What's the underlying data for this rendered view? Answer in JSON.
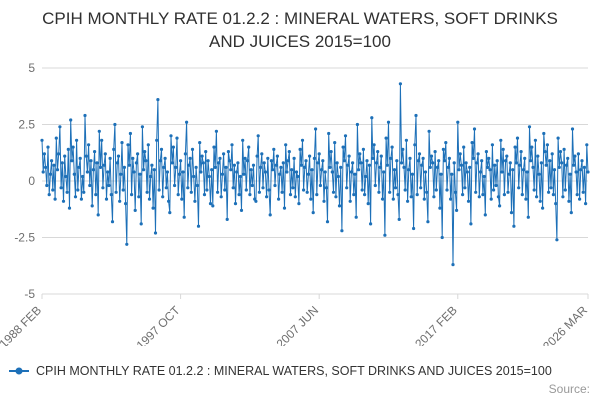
{
  "title": "CPIH MONTHLY RATE 01.2.2 : MINERAL WATERS, SOFT DRINKS AND JUICES 2015=100",
  "legend": {
    "label": "CPIH MONTHLY RATE 01.2.2 : MINERAL WATERS, SOFT DRINKS AND JUICES 2015=100"
  },
  "source_label": "Source:",
  "colors": {
    "line": "#1d70b8",
    "grid": "#d8d8d8",
    "axis_text": "#6e6e6e",
    "title_text": "#303030"
  },
  "chart_data": {
    "type": "line",
    "title": "CPIH MONTHLY RATE 01.2.2 : MINERAL WATERS, SOFT DRINKS AND JUICES 2015=100",
    "xlabel": "",
    "ylabel": "",
    "ylim": [
      -5,
      5
    ],
    "yticks": [
      5,
      2.5,
      0,
      -2.5,
      -5
    ],
    "x_range": [
      "1988 FEB",
      "2026 MAR"
    ],
    "xticks": [
      {
        "label": "1988 FEB",
        "index": 0
      },
      {
        "label": "1997 OCT",
        "index": 116
      },
      {
        "label": "2007 JUN",
        "index": 232
      },
      {
        "label": "2017 FEB",
        "index": 348
      },
      {
        "label": "2026 MAR",
        "index": 457
      }
    ],
    "values": [
      1.8,
      0.4,
      1.2,
      0.6,
      -0.2,
      1.5,
      -0.6,
      0.3,
      0.9,
      -0.4,
      0.7,
      -0.8,
      1.9,
      0.5,
      1.2,
      2.4,
      -0.3,
      0.8,
      -0.9,
      1.1,
      0.2,
      -0.5,
      1.4,
      -1.2,
      2.7,
      0.9,
      1.5,
      0.3,
      -0.7,
      1.8,
      -0.4,
      0.6,
      1.0,
      -0.8,
      0.2,
      -0.5,
      2.9,
      1.1,
      0.4,
      1.6,
      -0.2,
      0.9,
      -1.1,
      0.5,
      1.3,
      -0.6,
      0.8,
      -1.5,
      2.2,
      0.6,
      1.8,
      -0.3,
      0.7,
      1.2,
      -0.8,
      0.4,
      -0.2,
      1.0,
      -0.6,
      -1.8,
      1.4,
      2.5,
      -0.5,
      0.8,
      1.1,
      -0.9,
      0.3,
      1.7,
      -0.4,
      0.6,
      -1.0,
      -2.8,
      1.6,
      0.7,
      2.1,
      -0.6,
      1.0,
      0.4,
      -1.3,
      0.8,
      1.2,
      -0.7,
      0.3,
      -1.9,
      2.4,
      0.5,
      1.3,
      0.9,
      -0.5,
      1.6,
      -0.8,
      0.2,
      0.7,
      -1.2,
      0.5,
      -2.3,
      1.8,
      3.6,
      -0.4,
      0.9,
      1.4,
      -0.7,
      0.6,
      1.0,
      -0.3,
      0.4,
      -0.9,
      -1.4,
      2.0,
      0.8,
      1.5,
      -0.2,
      0.6,
      1.9,
      -0.6,
      0.3,
      0.9,
      -0.8,
      0.4,
      -1.6,
      1.2,
      2.6,
      -0.3,
      0.7,
      1.0,
      -0.5,
      1.4,
      0.2,
      -0.9,
      0.6,
      -0.2,
      -2.0,
      1.7,
      0.4,
      1.1,
      0.8,
      -0.6,
      1.3,
      -0.4,
      0.9,
      0.2,
      -1.0,
      0.5,
      -1.1,
      1.5,
      0.6,
      2.2,
      -0.5,
      0.8,
      1.0,
      -0.7,
      0.3,
      1.2,
      -0.4,
      0.6,
      -1.7,
      1.3,
      0.9,
      0.5,
      1.6,
      -0.3,
      0.7,
      -1.0,
      0.4,
      0.8,
      -0.6,
      0.2,
      -1.3,
      1.8,
      0.3,
      1.0,
      -0.4,
      0.9,
      1.5,
      -0.6,
      0.5,
      -0.2,
      0.7,
      -0.8,
      -0.9,
      1.1,
      2.0,
      -0.5,
      0.6,
      1.2,
      -0.3,
      0.8,
      0.4,
      -0.7,
      1.0,
      -0.4,
      -1.5,
      0.9,
      0.5,
      1.4,
      -0.2,
      0.7,
      1.1,
      -0.8,
      0.3,
      0.6,
      -0.5,
      0.8,
      -1.2,
      1.6,
      0.4,
      0.9,
      1.3,
      -0.6,
      0.5,
      -0.3,
      1.0,
      -0.7,
      0.4,
      0.2,
      -1.0,
      1.4,
      0.7,
      1.8,
      -0.4,
      0.6,
      0.9,
      -0.5,
      0.3,
      1.1,
      -0.8,
      0.5,
      -1.4,
      1.0,
      2.3,
      -0.6,
      0.8,
      1.2,
      -0.2,
      0.5,
      0.9,
      -0.9,
      0.4,
      -0.3,
      -1.8,
      2.1,
      0.6,
      1.3,
      0.4,
      -0.5,
      1.7,
      -0.7,
      0.8,
      0.2,
      -1.1,
      0.6,
      -2.2,
      1.5,
      0.9,
      2.0,
      -0.3,
      0.7,
      1.1,
      -0.9,
      0.4,
      0.8,
      -0.6,
      0.3,
      -1.6,
      2.5,
      0.5,
      1.2,
      0.8,
      -0.4,
      1.4,
      -0.6,
      0.2,
      0.9,
      -1.0,
      0.7,
      -1.9,
      2.8,
      1.0,
      1.6,
      -0.2,
      0.8,
      1.3,
      -0.5,
      0.6,
      1.1,
      -0.8,
      0.4,
      -2.4,
      1.9,
      0.7,
      2.6,
      -0.5,
      1.0,
      1.5,
      -0.8,
      0.5,
      -0.3,
      0.9,
      -0.6,
      -1.7,
      4.3,
      0.8,
      1.4,
      0.6,
      -0.4,
      1.8,
      -0.9,
      0.5,
      1.0,
      -0.7,
      0.3,
      -2.1,
      1.6,
      2.9,
      -0.6,
      0.9,
      1.2,
      -0.3,
      0.7,
      1.0,
      -0.8,
      0.4,
      -0.5,
      -1.8,
      2.2,
      0.6,
      1.1,
      0.8,
      -0.7,
      1.3,
      -0.4,
      0.6,
      0.9,
      -1.2,
      0.3,
      -2.5,
      1.4,
      0.9,
      1.7,
      -0.4,
      0.6,
      1.0,
      -0.8,
      0.3,
      -3.7,
      0.8,
      -0.5,
      -1.3,
      2.6,
      0.5,
      1.2,
      0.7,
      -0.6,
      1.5,
      -0.3,
      0.8,
      0.4,
      -0.9,
      0.6,
      -1.9,
      1.7,
      1.0,
      2.3,
      -0.5,
      0.8,
      1.2,
      -0.7,
      0.4,
      0.9,
      -0.6,
      0.2,
      -1.5,
      1.3,
      0.6,
      1.0,
      0.5,
      -0.8,
      1.6,
      -0.4,
      0.7,
      -0.2,
      0.9,
      -0.7,
      -1.1,
      1.8,
      0.4,
      1.4,
      -0.6,
      0.9,
      1.1,
      -0.5,
      0.3,
      0.8,
      -1.4,
      0.5,
      -2.0,
      1.5,
      0.8,
      1.9,
      -0.3,
      0.7,
      1.3,
      -0.6,
      0.5,
      1.0,
      -0.8,
      0.4,
      -1.6,
      2.4,
      0.9,
      1.5,
      0.6,
      -0.4,
      1.8,
      -0.7,
      1.1,
      0.3,
      -0.9,
      0.8,
      -1.2,
      2.1,
      1.3,
      0.7,
      1.6,
      -0.5,
      0.9,
      -0.3,
      1.2,
      -0.6,
      0.5,
      -1.0,
      -2.6,
      1.9,
      0.6,
      1.3,
      0.8,
      -0.7,
      1.4,
      -0.4,
      0.7,
      1.0,
      -0.9,
      0.3,
      -1.4,
      2.3,
      0.7,
      1.1,
      0.4,
      -0.6,
      1.2,
      -0.8,
      0.5,
      0.9,
      -0.5,
      0.6,
      -1.0,
      1.6,
      0.4
    ]
  }
}
